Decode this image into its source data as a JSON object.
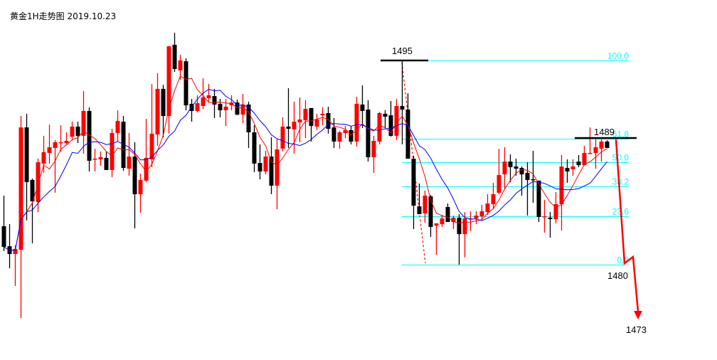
{
  "chart_data": {
    "type": "candlestick",
    "title": "黄金1H走势图 2019.10.23",
    "up_color": "#ff0000",
    "down_color": "#000000",
    "ohlc": [
      [
        1482.82,
        1485.07,
        1480.99,
        1481.3
      ],
      [
        1481.35,
        1482.98,
        1479.73,
        1480.78
      ],
      [
        1480.78,
        1481.41,
        1478.43,
        1481.15
      ],
      [
        1481.09,
        1490.92,
        1476.08,
        1490.08
      ],
      [
        1490.08,
        1491.08,
        1483.24,
        1486.06
      ],
      [
        1486.22,
        1486.32,
        1481.56,
        1484.65
      ],
      [
        1484.6,
        1487.78,
        1483.86,
        1487.52
      ],
      [
        1487.42,
        1489.46,
        1486.74,
        1488.26
      ],
      [
        1488.2,
        1490.29,
        1487.42,
        1488.62
      ],
      [
        1488.57,
        1489.14,
        1485.28,
        1488.99
      ],
      [
        1488.93,
        1490.24,
        1488.31,
        1488.99
      ],
      [
        1488.93,
        1489.72,
        1488.83,
        1489.09
      ],
      [
        1489.4,
        1490.5,
        1489.14,
        1490.14
      ],
      [
        1490.14,
        1490.5,
        1488.93,
        1489.46
      ],
      [
        1489.46,
        1492.75,
        1488.15,
        1491.29
      ],
      [
        1491.29,
        1491.55,
        1486.84,
        1487.63
      ],
      [
        1487.73,
        1488.52,
        1486.84,
        1487.78
      ],
      [
        1487.73,
        1488.31,
        1487.26,
        1487.89
      ],
      [
        1487.84,
        1488.31,
        1486.95,
        1486.95
      ],
      [
        1486.95,
        1489.98,
        1486.42,
        1489.67
      ],
      [
        1489.67,
        1491.34,
        1489.04,
        1490.55
      ],
      [
        1490.5,
        1490.92,
        1486.9,
        1487.1
      ],
      [
        1487.05,
        1489.67,
        1486.53,
        1487.94
      ],
      [
        1487.94,
        1488.99,
        1482.66,
        1485.17
      ],
      [
        1485.17,
        1486.69,
        1483.81,
        1486.22
      ],
      [
        1486.17,
        1490.71,
        1486.06,
        1487.84
      ],
      [
        1487.73,
        1493.27,
        1487.16,
        1489.62
      ],
      [
        1489.56,
        1494.06,
        1488.73,
        1492.91
      ],
      [
        1492.91,
        1493.22,
        1489.35,
        1490.92
      ],
      [
        1490.92,
        1496.04,
        1489.62,
        1496.04
      ],
      [
        1496.15,
        1497.04,
        1494.16,
        1494.37
      ],
      [
        1494.27,
        1495.42,
        1493.59,
        1495.0
      ],
      [
        1494.94,
        1495.15,
        1491.34,
        1491.7
      ],
      [
        1491.81,
        1492.17,
        1490.5,
        1491.29
      ],
      [
        1491.29,
        1492.44,
        1491.18,
        1491.86
      ],
      [
        1491.65,
        1493.69,
        1491.44,
        1492.28
      ],
      [
        1492.23,
        1493.27,
        1491.97,
        1492.44
      ],
      [
        1492.38,
        1492.91,
        1490.77,
        1491.76
      ],
      [
        1491.81,
        1492.17,
        1490.82,
        1491.34
      ],
      [
        1491.34,
        1492.17,
        1490.19,
        1491.6
      ],
      [
        1491.7,
        1492.44,
        1491.34,
        1491.91
      ],
      [
        1491.91,
        1492.12,
        1490.97,
        1491.02
      ],
      [
        1491.02,
        1492.54,
        1490.4,
        1491.76
      ],
      [
        1491.76,
        1491.97,
        1488.57,
        1489.72
      ],
      [
        1489.72,
        1490.24,
        1486.79,
        1487.42
      ],
      [
        1487.47,
        1488.83,
        1486.27,
        1486.84
      ],
      [
        1486.84,
        1488.36,
        1486.63,
        1487.94
      ],
      [
        1487.94,
        1489.35,
        1485.17,
        1485.8
      ],
      [
        1485.8,
        1489.25,
        1484.07,
        1488.46
      ],
      [
        1488.52,
        1490.82,
        1488.31,
        1490.14
      ],
      [
        1490.14,
        1492.96,
        1488.57,
        1489.98
      ],
      [
        1489.93,
        1491.97,
        1488.15,
        1490.5
      ],
      [
        1490.45,
        1492.28,
        1488.99,
        1490.66
      ],
      [
        1490.61,
        1492.07,
        1489.3,
        1491.44
      ],
      [
        1491.5,
        1491.5,
        1489.04,
        1490.19
      ],
      [
        1490.14,
        1491.08,
        1489.88,
        1490.66
      ],
      [
        1490.97,
        1491.55,
        1490.24,
        1491.08
      ],
      [
        1491.13,
        1491.6,
        1489.62,
        1489.98
      ],
      [
        1490.08,
        1490.76,
        1488.57,
        1489.04
      ],
      [
        1489.04,
        1489.82,
        1488.52,
        1489.72
      ],
      [
        1489.67,
        1490.19,
        1489.3,
        1489.88
      ],
      [
        1489.88,
        1490.19,
        1488.83,
        1489.04
      ],
      [
        1489.04,
        1492.33,
        1488.67,
        1491.81
      ],
      [
        1491.76,
        1493.17,
        1490.03,
        1491.29
      ],
      [
        1491.39,
        1492.07,
        1487.57,
        1487.89
      ],
      [
        1487.89,
        1489.46,
        1486.74,
        1489.09
      ],
      [
        1489.04,
        1491.23,
        1488.83,
        1491.13
      ],
      [
        1491.08,
        1491.34,
        1490.03,
        1490.87
      ],
      [
        1490.97,
        1492.02,
        1489.4,
        1489.46
      ],
      [
        1489.46,
        1492.17,
        1489.14,
        1491.65
      ],
      [
        1491.65,
        1495.0,
        1488.83,
        1491.39
      ],
      [
        1491.39,
        1492.59,
        1487.78,
        1487.78
      ],
      [
        1487.78,
        1487.99,
        1482.61,
        1484.33
      ],
      [
        1484.28,
        1485.96,
        1483.71,
        1483.71
      ],
      [
        1483.76,
        1485.43,
        1483.08,
        1485.07
      ],
      [
        1485.01,
        1485.12,
        1482.03,
        1482.77
      ],
      [
        1482.87,
        1483.03,
        1480.73,
        1483.03
      ],
      [
        1482.97,
        1483.66,
        1482.77,
        1483.39
      ],
      [
        1484.23,
        1484.49,
        1483.13,
        1483.13
      ],
      [
        1483.13,
        1483.6,
        1482.61,
        1483.45
      ],
      [
        1483.45,
        1483.71,
        1480.0,
        1482.24
      ],
      [
        1482.24,
        1483.86,
        1480.52,
        1483.39
      ],
      [
        1483.34,
        1483.92,
        1482.45,
        1483.39
      ],
      [
        1483.39,
        1483.92,
        1482.97,
        1483.6
      ],
      [
        1483.55,
        1484.39,
        1483.34,
        1483.92
      ],
      [
        1483.86,
        1485.17,
        1483.66,
        1484.49
      ],
      [
        1484.44,
        1486.01,
        1484.07,
        1485.17
      ],
      [
        1485.28,
        1488.52,
        1485.17,
        1486.58
      ],
      [
        1486.63,
        1488.62,
        1485.59,
        1487.57
      ],
      [
        1487.57,
        1488.1,
        1486.06,
        1487.16
      ],
      [
        1487.21,
        1487.78,
        1486.53,
        1487.05
      ],
      [
        1487.1,
        1487.21,
        1485.07,
        1486.63
      ],
      [
        1486.74,
        1487.52,
        1483.6,
        1486.22
      ],
      [
        1486.27,
        1488.36,
        1484.54,
        1486.22
      ],
      [
        1486.17,
        1486.17,
        1483.13,
        1483.5
      ],
      [
        1483.5,
        1484.75,
        1482.35,
        1483.55
      ],
      [
        1483.45,
        1483.86,
        1481.98,
        1483.34
      ],
      [
        1483.34,
        1485.33,
        1483.03,
        1484.44
      ],
      [
        1484.44,
        1488.05,
        1482.5,
        1487.21
      ],
      [
        1487.1,
        1487.73,
        1486.01,
        1486.84
      ],
      [
        1487.0,
        1487.73,
        1486.53,
        1487.21
      ],
      [
        1487.57,
        1488.05,
        1487.16,
        1487.31
      ],
      [
        1487.31,
        1488.73,
        1487.31,
        1488.2
      ],
      [
        1488.15,
        1490.08,
        1488.15,
        1488.2
      ],
      [
        1488.2,
        1489.2,
        1487.05,
        1488.62
      ],
      [
        1488.52,
        1489.2,
        1487.57,
        1489.04
      ],
      [
        1489.04,
        1489.14,
        1488.57,
        1488.57
      ]
    ],
    "moving_averages": [
      {
        "period": 5,
        "color": "#ff0000"
      },
      {
        "period": 10,
        "color": "#0000ff"
      }
    ],
    "fibonacci": {
      "high": 1495,
      "low": 1480,
      "color": "#00ffff",
      "levels": [
        {
          "ratio": 1.0,
          "label": "100.0"
        },
        {
          "ratio": 0.618,
          "label": "61.8"
        },
        {
          "ratio": 0.5,
          "label": "50.0"
        },
        {
          "ratio": 0.382,
          "label": "38.2"
        },
        {
          "ratio": 0.236,
          "label": "23.6"
        },
        {
          "ratio": 0.0,
          "label": "0.0"
        }
      ]
    },
    "annotations": {
      "high_label": "1495",
      "resistance_label": "1489",
      "support_label": "1480",
      "target_label": "1473",
      "projection_color": "#ff0000"
    }
  }
}
